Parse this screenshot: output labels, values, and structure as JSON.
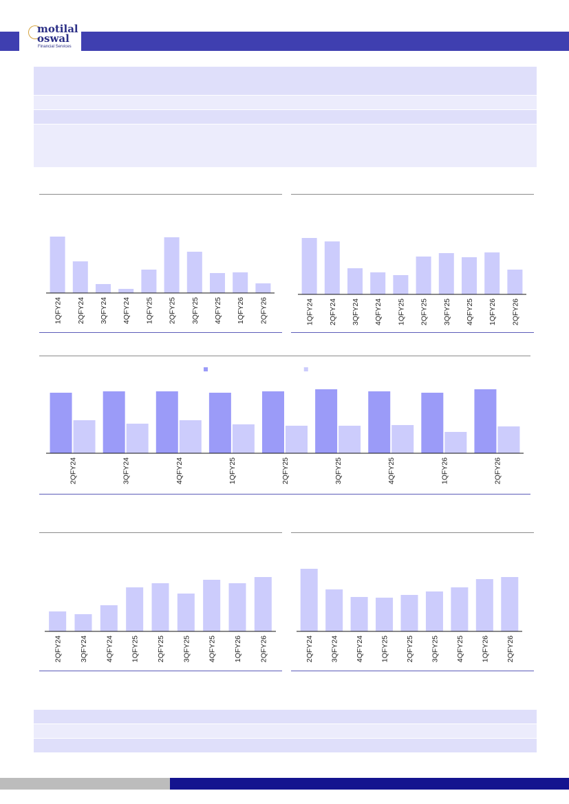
{
  "brand": {
    "logo_line1": "motilal",
    "logo_line2": "oswal",
    "logo_line3": "Financial Services",
    "primary_color": "#3f3fb0",
    "footer_color": "#14148f"
  },
  "chart_data": [
    {
      "type": "bar",
      "categories": [
        "1QFY24",
        "2QFY24",
        "3QFY24",
        "4QFY24",
        "1QFY25",
        "2QFY25",
        "3QFY25",
        "4QFY25",
        "1QFY26",
        "2QFY26"
      ],
      "values": [
        82,
        46,
        13,
        6,
        34,
        81,
        60,
        29,
        30,
        14
      ],
      "ylim": [
        0,
        90
      ],
      "color": "#ccccfc"
    },
    {
      "type": "bar",
      "categories": [
        "1QFY24",
        "2QFY24",
        "3QFY24",
        "4QFY24",
        "1QFY25",
        "2QFY25",
        "3QFY25",
        "4QFY25",
        "1QFY26",
        "2QFY26"
      ],
      "values": [
        82,
        77,
        38,
        32,
        28,
        55,
        60,
        54,
        61,
        36
      ],
      "ylim": [
        0,
        90
      ],
      "color": "#ccccfc"
    },
    {
      "type": "bar",
      "categories": [
        "2QFY24",
        "3QFY24",
        "4QFY24",
        "1QFY25",
        "2QFY25",
        "3QFY25",
        "4QFY25",
        "1QFY26",
        "2QFY26"
      ],
      "series": [
        {
          "values": [
            88,
            90,
            90,
            88,
            90,
            93,
            90,
            88,
            93
          ],
          "color": "#9b9bf8"
        },
        {
          "values": [
            48,
            43,
            48,
            42,
            40,
            40,
            41,
            31,
            39
          ],
          "color": "#ccccfc"
        }
      ],
      "legend_placement": "top-center",
      "ylim": [
        0,
        100
      ]
    },
    {
      "type": "bar",
      "categories": [
        "2QFY24",
        "3QFY24",
        "4QFY24",
        "1QFY25",
        "2QFY25",
        "3QFY25",
        "4QFY25",
        "1QFY26",
        "2QFY26"
      ],
      "values": [
        29,
        25,
        38,
        64,
        70,
        55,
        75,
        70,
        79
      ],
      "ylim": [
        0,
        100
      ],
      "color": "#ccccfc"
    },
    {
      "type": "bar",
      "categories": [
        "2QFY24",
        "3QFY24",
        "4QFY24",
        "1QFY25",
        "2QFY25",
        "3QFY25",
        "4QFY25",
        "1QFY26",
        "2QFY26"
      ],
      "values": [
        91,
        61,
        50,
        49,
        53,
        58,
        64,
        76,
        79
      ],
      "ylim": [
        0,
        100
      ],
      "color": "#ccccfc"
    }
  ]
}
